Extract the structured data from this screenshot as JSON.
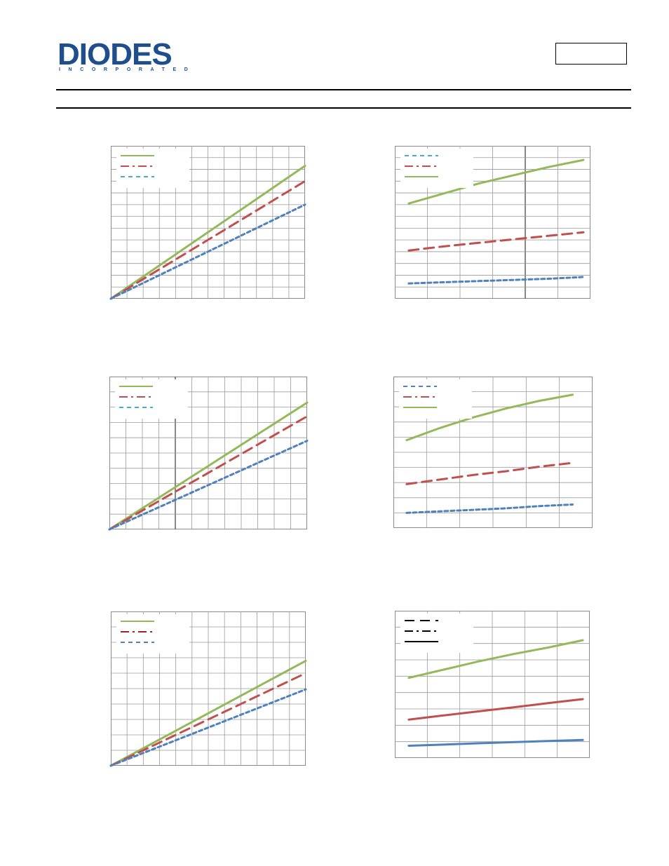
{
  "header": {
    "logo_word": "DIODES",
    "logo_sub": "INCORPORATED",
    "part_box": "",
    "logo_color": "#1f4e8c"
  },
  "colors": {
    "green": "#93b95a",
    "red": "#c0504d",
    "blue": "#4f81bd",
    "teal": "#4bacc6",
    "grid": "#9a9a9a"
  },
  "chart_data": [
    {
      "type": "line",
      "id": "c1",
      "xlim": [
        0,
        12
      ],
      "ylim": [
        0,
        13
      ],
      "grid": true,
      "legend": "top-left",
      "title": "",
      "xlabel": "",
      "ylabel": "",
      "series": [
        {
          "style": "solid",
          "color": "#93b95a",
          "x": [
            0,
            12
          ],
          "y": [
            0,
            11.3
          ]
        },
        {
          "style": "dash",
          "color": "#c0504d",
          "x": [
            0,
            12
          ],
          "y": [
            0,
            10.0
          ]
        },
        {
          "style": "dot",
          "color": "#4f81bd",
          "x": [
            0,
            12
          ],
          "y": [
            0,
            8.0
          ]
        }
      ],
      "legend_styles": [
        "solid-green",
        "dashdot-red",
        "dot-teal"
      ]
    },
    {
      "type": "line",
      "id": "c2",
      "xlim": [
        0,
        5.6
      ],
      "ylim": [
        0,
        13
      ],
      "grid": true,
      "legend": "top-left",
      "title": "",
      "xlabel": "",
      "ylabel": "",
      "series": [
        {
          "style": "dot",
          "color": "#4f81bd",
          "x": [
            0.4,
            1.4,
            2.4,
            3.4,
            4.4,
            5.4
          ],
          "y": [
            1.3,
            1.4,
            1.5,
            1.6,
            1.7,
            1.85
          ]
        },
        {
          "style": "dash",
          "color": "#c0504d",
          "x": [
            0.4,
            1.4,
            2.4,
            3.4,
            4.4,
            5.4
          ],
          "y": [
            4.1,
            4.45,
            4.75,
            5.05,
            5.35,
            5.65
          ]
        },
        {
          "style": "solid",
          "color": "#93b95a",
          "x": [
            0.4,
            1.4,
            2.4,
            3.4,
            4.4,
            5.4
          ],
          "y": [
            8.1,
            8.95,
            9.8,
            10.5,
            11.2,
            11.8
          ]
        }
      ],
      "legend_styles": [
        "dot-teal",
        "dashdot-red",
        "solid-green"
      ]
    },
    {
      "type": "line",
      "id": "c3",
      "xlim": [
        0,
        12
      ],
      "ylim": [
        0,
        10
      ],
      "grid": true,
      "legend": "top-left",
      "title": "",
      "xlabel": "",
      "ylabel": "",
      "series": [
        {
          "style": "solid",
          "color": "#93b95a",
          "x": [
            0,
            12
          ],
          "y": [
            0,
            8.3
          ]
        },
        {
          "style": "dash",
          "color": "#c0504d",
          "x": [
            0,
            12
          ],
          "y": [
            0,
            7.4
          ]
        },
        {
          "style": "dot",
          "color": "#4f81bd",
          "x": [
            0,
            12
          ],
          "y": [
            0,
            5.8
          ]
        }
      ],
      "legend_styles": [
        "solid-green",
        "dashdot-red",
        "dot-teal"
      ]
    },
    {
      "type": "line",
      "id": "c4",
      "xlim": [
        0,
        6
      ],
      "ylim": [
        0,
        10
      ],
      "grid": true,
      "legend": "top-left",
      "title": "",
      "xlabel": "",
      "ylabel": "",
      "series": [
        {
          "style": "dot",
          "color": "#4f81bd",
          "x": [
            0.4,
            1.4,
            2.4,
            3.4,
            4.4,
            5.4
          ],
          "y": [
            1.0,
            1.1,
            1.2,
            1.3,
            1.45,
            1.55
          ]
        },
        {
          "style": "dash",
          "color": "#c0504d",
          "x": [
            0.4,
            1.4,
            2.4,
            3.4,
            4.4,
            5.4
          ],
          "y": [
            2.9,
            3.2,
            3.5,
            3.75,
            4.05,
            4.3
          ]
        },
        {
          "style": "solid",
          "color": "#93b95a",
          "x": [
            0.4,
            1.4,
            2.4,
            3.4,
            4.4,
            5.4
          ],
          "y": [
            5.8,
            6.6,
            7.3,
            7.9,
            8.4,
            8.8
          ]
        }
      ],
      "legend_styles": [
        "dot-blue",
        "dashdot-red",
        "solid-green"
      ]
    },
    {
      "type": "line",
      "id": "c5",
      "xlim": [
        0,
        12
      ],
      "ylim": [
        0,
        10
      ],
      "grid": true,
      "legend": "top-left",
      "title": "",
      "xlabel": "",
      "ylabel": "",
      "series": [
        {
          "style": "solid",
          "color": "#93b95a",
          "x": [
            0,
            12
          ],
          "y": [
            0,
            6.8
          ]
        },
        {
          "style": "dash",
          "color": "#c0504d",
          "x": [
            0,
            12
          ],
          "y": [
            0,
            6.0
          ]
        },
        {
          "style": "dot",
          "color": "#4f81bd",
          "x": [
            0,
            12
          ],
          "y": [
            0,
            4.95
          ]
        }
      ],
      "legend_styles": [
        "solid-green",
        "dashdot-darkred",
        "dot-blue"
      ]
    },
    {
      "type": "line",
      "id": "c6",
      "xlim": [
        0,
        5.6
      ],
      "ylim": [
        0,
        9
      ],
      "grid": true,
      "legend": "top-left",
      "title": "",
      "xlabel": "",
      "ylabel": "",
      "series": [
        {
          "style": "solid",
          "color": "#4f81bd",
          "x": [
            0.4,
            1.4,
            2.4,
            3.4,
            4.4,
            5.4
          ],
          "y": [
            0.75,
            0.82,
            0.9,
            0.97,
            1.04,
            1.1
          ]
        },
        {
          "style": "solid",
          "color": "#c0504d",
          "x": [
            0.4,
            1.4,
            2.4,
            3.4,
            4.4,
            5.4
          ],
          "y": [
            2.35,
            2.6,
            2.85,
            3.1,
            3.35,
            3.6
          ]
        },
        {
          "style": "solid",
          "color": "#93b95a",
          "x": [
            0.4,
            1.4,
            2.4,
            3.4,
            4.4,
            5.4
          ],
          "y": [
            4.9,
            5.4,
            5.9,
            6.35,
            6.75,
            7.2
          ]
        }
      ],
      "legend_styles": [
        "dash-black",
        "dashdot-black",
        "solid-black"
      ]
    }
  ]
}
